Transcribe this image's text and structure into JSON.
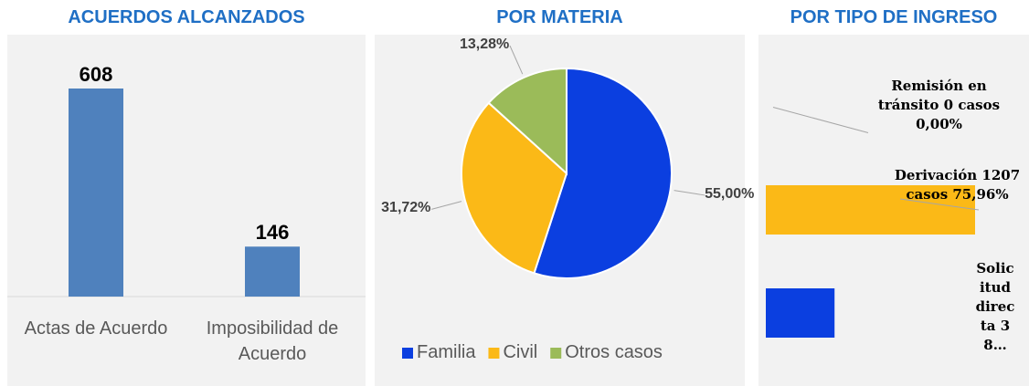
{
  "chart_data": [
    {
      "type": "bar",
      "title": "ACUERDOS ALCANZADOS",
      "categories": [
        "Actas de Acuerdo",
        "Imposibilidad de Acuerdo"
      ],
      "values": [
        608,
        146
      ],
      "color": "#4f81bd"
    },
    {
      "type": "pie",
      "title": "POR MATERIA",
      "categories": [
        "Familia",
        "Civil",
        "Otros casos"
      ],
      "values": [
        55,
        31.72,
        13.28
      ],
      "value_labels": [
        "55,00%",
        "31,72%",
        "13,28%"
      ],
      "colors": [
        "#0b3fe0",
        "#fbb917",
        "#9bbb59"
      ],
      "legend": "bottom"
    },
    {
      "type": "hbar",
      "title": "POR TIPO DE INGRESO",
      "categories": [
        "Remisión en tránsito",
        "Derivación",
        "Solicitud directa"
      ],
      "values": [
        0,
        1207,
        382
      ],
      "value_labels": [
        "Remisión en tránsito 0 casos 0,00%",
        "Derivación 1207 casos 75,96%",
        "Solicitud directa 38…"
      ],
      "colors": [
        "#808080",
        "#fbb917",
        "#0b3fe0"
      ]
    }
  ]
}
